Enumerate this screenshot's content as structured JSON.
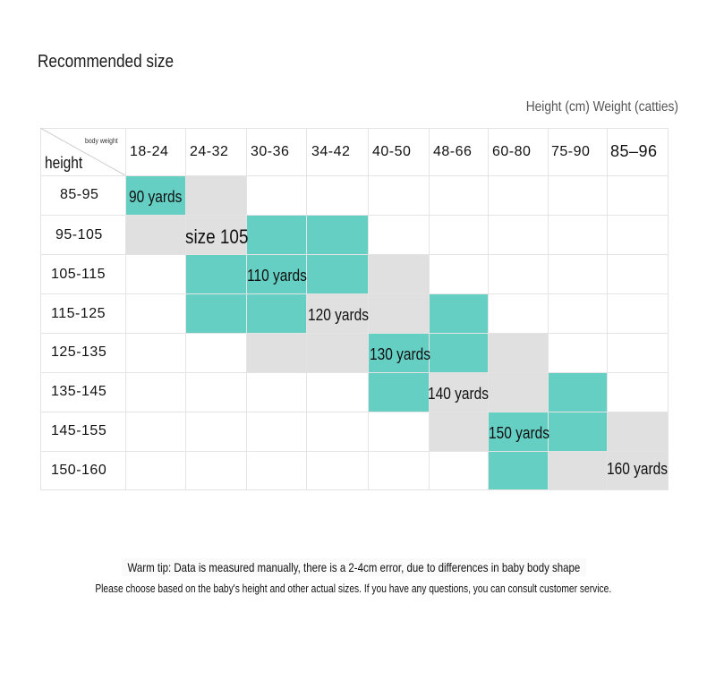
{
  "title": "Recommended size",
  "units_note": "Height (cm) Weight (catties)",
  "table": {
    "corner_weight": "body weight",
    "corner_height": "height",
    "weight_columns": [
      "18-24",
      "24-32",
      "30-36",
      "34-42",
      "40-50",
      "48-66",
      "60-80",
      "75-90",
      "85–96"
    ],
    "height_rows": [
      "85-95",
      "95-105",
      "105-115",
      "115-125",
      "125-135",
      "135-145",
      "145-155",
      "150-160"
    ],
    "size_labels": [
      "90 yards",
      "size 105",
      "110 yards",
      "120 yards",
      "130 yards",
      "140 yards",
      "150 yards",
      "160 yards"
    ],
    "colors": {
      "teal": "#66cfc3",
      "gray": "#e0e0e0",
      "grid": "#e4e4e4"
    }
  },
  "tips": {
    "line1": "Warm tip: Data is measured manually, there is a 2-4cm error, due to differences in baby body shape",
    "line2": "Please choose based on the baby's height and other actual sizes. If you have any questions, you can consult customer service."
  }
}
